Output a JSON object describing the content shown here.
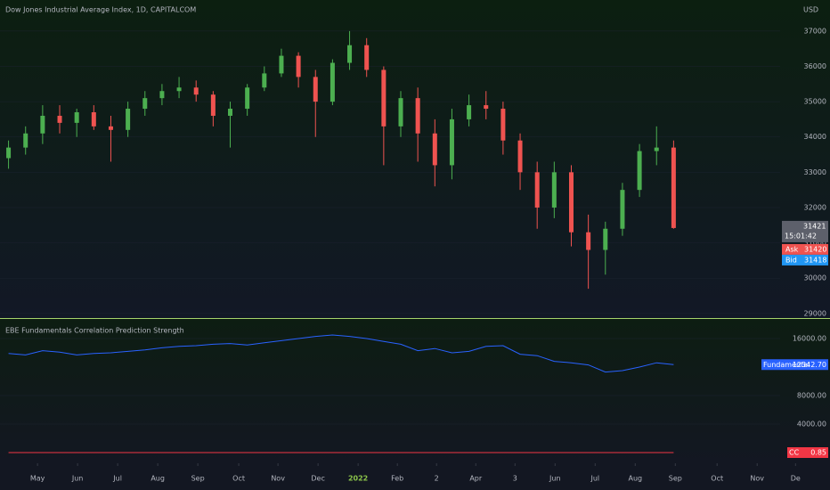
{
  "chart_data": [
    {
      "type": "candlestick",
      "title": "Dow Jones Industrial Average Index, 1D, CAPITALCOM",
      "currency": "USD",
      "up_color": "#4caf50",
      "down_color": "#ef5350",
      "x": [
        1,
        3,
        5,
        7,
        9,
        11,
        13,
        15,
        17,
        19,
        21,
        23,
        25,
        27,
        29,
        31,
        33,
        35,
        37,
        39,
        41,
        43,
        45,
        47,
        49,
        51,
        53,
        55,
        57,
        59,
        61,
        63,
        65,
        67,
        69,
        71,
        73,
        75,
        77,
        79
      ],
      "open": [
        33400,
        33700,
        34100,
        34600,
        34400,
        34700,
        34300,
        34200,
        34800,
        35100,
        35300,
        35400,
        35200,
        34600,
        34800,
        35400,
        35800,
        36300,
        35700,
        35000,
        36100,
        36600,
        35900,
        34300,
        35100,
        34100,
        33200,
        34500,
        34900,
        34800,
        33900,
        33000,
        32000,
        33000,
        31300,
        30800,
        31400,
        32500,
        33600,
        33700
      ],
      "high": [
        33900,
        34300,
        34900,
        34900,
        34800,
        34900,
        34600,
        35000,
        35300,
        35500,
        35700,
        35600,
        35300,
        35000,
        35500,
        36000,
        36500,
        36400,
        35900,
        36200,
        37000,
        36800,
        36000,
        35300,
        35400,
        34500,
        34800,
        35200,
        35300,
        35000,
        34100,
        33300,
        33300,
        33200,
        31800,
        31600,
        32700,
        33800,
        34300,
        33900
      ],
      "low": [
        33100,
        33500,
        33800,
        34100,
        34000,
        34200,
        33300,
        34000,
        34600,
        34900,
        35100,
        35000,
        34300,
        33700,
        34600,
        35300,
        35700,
        35400,
        34000,
        34900,
        35900,
        35700,
        33200,
        34000,
        33300,
        32600,
        32800,
        34300,
        34500,
        33500,
        32500,
        31400,
        31700,
        30900,
        29700,
        30100,
        31200,
        32300,
        33200,
        31400
      ],
      "close": [
        33700,
        34100,
        34600,
        34400,
        34700,
        34300,
        34200,
        34800,
        35100,
        35300,
        35400,
        35200,
        34600,
        34800,
        35400,
        35800,
        36300,
        35700,
        35000,
        36100,
        36600,
        35900,
        34300,
        35100,
        34100,
        33200,
        34500,
        34900,
        34800,
        33900,
        33000,
        32000,
        33000,
        31300,
        30800,
        31400,
        32500,
        33600,
        33700,
        31421
      ],
      "xlim": [
        0,
        94
      ],
      "xticks": [
        {
          "value": 4.4,
          "label": "May"
        },
        {
          "value": 9.1,
          "label": "Jun"
        },
        {
          "value": 13.8,
          "label": "Jul"
        },
        {
          "value": 18.5,
          "label": "Aug"
        },
        {
          "value": 23.2,
          "label": "Sep"
        },
        {
          "value": 28,
          "label": "Oct"
        },
        {
          "value": 32.6,
          "label": "Nov"
        },
        {
          "value": 37.3,
          "label": "Dec"
        },
        {
          "value": 42,
          "label": "2022"
        },
        {
          "value": 46.6,
          "label": "Feb"
        },
        {
          "value": 51.2,
          "label": "2"
        },
        {
          "value": 55.8,
          "label": "Apr"
        },
        {
          "value": 60.4,
          "label": "3"
        },
        {
          "value": 65.1,
          "label": "Jun"
        },
        {
          "value": 69.8,
          "label": "Jul"
        },
        {
          "value": 74.5,
          "label": "Aug"
        },
        {
          "value": 79.2,
          "label": "Sep"
        },
        {
          "value": 84.1,
          "label": "Oct"
        },
        {
          "value": 88.8,
          "label": "Nov"
        },
        {
          "value": 93.3,
          "label": "De"
        }
      ],
      "ylim": [
        28870,
        37880
      ],
      "yticks": [
        29000,
        30000,
        31000,
        32000,
        33000,
        34000,
        35000,
        36000,
        37000
      ],
      "last_price": 31421,
      "countdown": "15:01:42",
      "ask_label": "Ask",
      "ask": 31420,
      "bid_label": "Bid",
      "bid": 31418
    },
    {
      "type": "line",
      "title": "EBE Fundamentals Correlation Prediction Strength",
      "x": [
        1,
        3,
        5,
        7,
        9,
        11,
        13,
        15,
        17,
        19,
        21,
        23,
        25,
        27,
        29,
        31,
        33,
        35,
        37,
        39,
        41,
        43,
        45,
        47,
        49,
        51,
        53,
        55,
        57,
        59,
        61,
        63,
        65,
        67,
        69,
        71,
        73,
        75,
        77,
        79
      ],
      "series": [
        {
          "name": "Fundamental",
          "color": "#2962ff",
          "values": [
            13900,
            13700,
            14300,
            14100,
            13700,
            13900,
            14000,
            14200,
            14400,
            14700,
            14900,
            15000,
            15200,
            15300,
            15100,
            15400,
            15700,
            16000,
            16300,
            16500,
            16300,
            16000,
            15600,
            15200,
            14300,
            14600,
            14000,
            14200,
            14900,
            15000,
            13800,
            13600,
            12800,
            12600,
            12300,
            11300,
            11500,
            12000,
            12600,
            12342.7
          ],
          "value_labels": [
            null,
            null,
            null,
            null,
            null,
            null,
            null,
            null,
            null,
            null,
            null,
            null,
            null,
            null,
            null,
            null,
            null,
            null,
            null,
            null,
            null,
            null,
            null,
            null,
            null,
            null,
            null,
            null,
            null,
            null,
            null,
            null,
            null,
            null,
            null,
            null,
            null,
            null,
            null,
            "12342.70"
          ]
        },
        {
          "name": "CC",
          "color": "#f23645",
          "values": [
            0.85,
            0.85,
            0.85,
            0.85,
            0.85,
            0.85,
            0.85,
            0.85,
            0.85,
            0.85,
            0.85,
            0.85,
            0.85,
            0.85,
            0.85,
            0.85,
            0.85,
            0.85,
            0.85,
            0.85,
            0.85,
            0.85,
            0.85,
            0.85,
            0.85,
            0.85,
            0.85,
            0.85,
            0.85,
            0.85,
            0.85,
            0.85,
            0.85,
            0.85,
            0.85,
            0.85,
            0.85,
            0.85,
            0.85,
            0.85
          ]
        }
      ],
      "xlim": [
        0,
        94
      ],
      "ylim": [
        -1500,
        18750
      ],
      "yticks": [
        {
          "value": 4000,
          "label": "4000.00"
        },
        {
          "value": 8000,
          "label": "8000.00"
        },
        {
          "value": 16000,
          "label": "16000.00"
        }
      ]
    }
  ]
}
